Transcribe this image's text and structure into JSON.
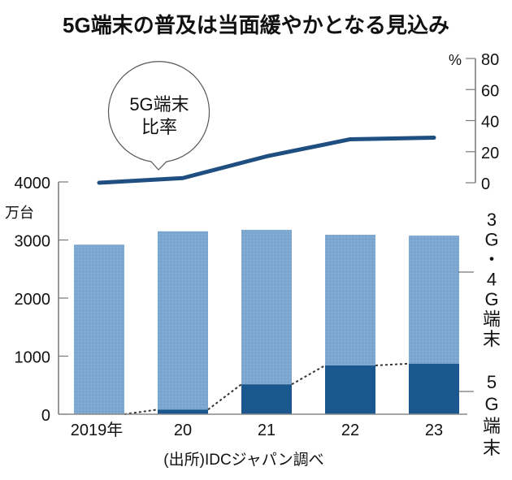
{
  "chart_data": [
    {
      "type": "bar",
      "stacked": true,
      "title": "5G端末の普及は当面緩やかとなる見込み",
      "categories": [
        "2019年",
        "20",
        "21",
        "22",
        "23"
      ],
      "ylabel": "万台",
      "ylim": [
        0,
        4000
      ],
      "yticks": [
        "0",
        "1000",
        "2000",
        "3000",
        "4000"
      ],
      "series": [
        {
          "name": "5G端末",
          "values": [
            0,
            80,
            515,
            840,
            870
          ],
          "color": "#1b578f"
        },
        {
          "name": "3G・4G端末",
          "values": [
            2920,
            3070,
            2660,
            2250,
            2205
          ],
          "color": "#7ba7d1"
        }
      ],
      "connector": "dotted lines linking tops of 5G segments",
      "source": "(出所)IDCジャパン調べ"
    },
    {
      "type": "line",
      "name": "5G端末比率",
      "bubble_label_line1": "5G端末",
      "bubble_label_line2": "比率",
      "categories": [
        "2019年",
        "20",
        "21",
        "22",
        "23"
      ],
      "values": [
        0,
        3,
        17,
        28,
        29
      ],
      "ylabel": "%",
      "ylim": [
        0,
        80
      ],
      "yticks": [
        "0",
        "20",
        "40",
        "60",
        "80"
      ],
      "color": "#1f4f80"
    }
  ],
  "labels": {
    "series_3g4g_vertical": [
      "3",
      "G",
      "・",
      "4",
      "G",
      "端",
      "末"
    ],
    "series_5g_vertical": [
      "5",
      "G",
      "端",
      "末"
    ]
  }
}
